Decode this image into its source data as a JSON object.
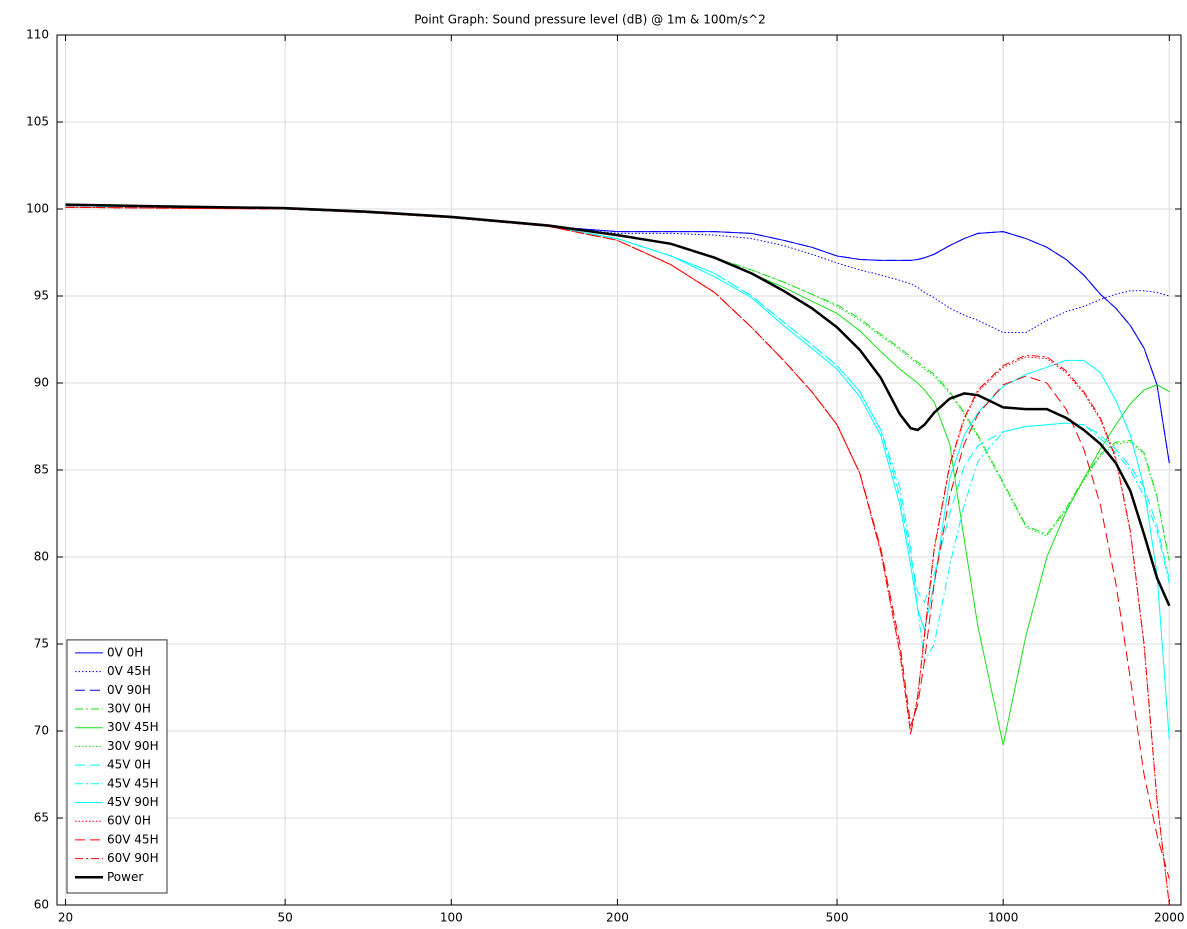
{
  "chart_data": {
    "type": "line",
    "title": "Point Graph: Sound pressure level (dB) @ 1m & 100m/s^2",
    "x": [
      20,
      30,
      50,
      70,
      100,
      150,
      200,
      250,
      300,
      350,
      400,
      450,
      500,
      550,
      600,
      650,
      680,
      700,
      720,
      750,
      800,
      850,
      900,
      1000,
      1100,
      1200,
      1300,
      1400,
      1500,
      1600,
      1700,
      1800,
      1900,
      2000
    ],
    "series": [
      {
        "name": "0V 0H",
        "color": "#0000ff",
        "style": "solid",
        "linewidth": 1,
        "values": [
          100.2,
          100.1,
          100.0,
          99.8,
          99.5,
          99.0,
          98.7,
          98.7,
          98.7,
          98.6,
          98.2,
          97.8,
          97.3,
          97.1,
          97.05,
          97.05,
          97.05,
          97.1,
          97.2,
          97.4,
          97.9,
          98.3,
          98.6,
          98.7,
          98.3,
          97.8,
          97.1,
          96.2,
          95.1,
          94.3,
          93.3,
          92.0,
          89.9,
          85.4
        ]
      },
      {
        "name": "0V 45H",
        "color": "#0000ff",
        "style": "dotted",
        "linewidth": 1,
        "values": [
          100.2,
          100.1,
          100.0,
          99.8,
          99.5,
          99.0,
          98.6,
          98.6,
          98.5,
          98.3,
          97.9,
          97.4,
          96.9,
          96.5,
          96.2,
          95.9,
          95.7,
          95.5,
          95.2,
          94.9,
          94.3,
          93.9,
          93.6,
          92.9,
          92.9,
          93.6,
          94.1,
          94.4,
          94.8,
          95.1,
          95.3,
          95.3,
          95.2,
          95.0
        ]
      },
      {
        "name": "0V 90H",
        "color": "#0000ff",
        "style": "dashed",
        "linewidth": 1,
        "values": [
          100.2,
          100.1,
          100.0,
          99.8,
          99.5,
          99.0,
          98.7,
          98.7,
          98.7,
          98.6,
          98.2,
          97.8,
          97.3,
          97.1,
          97.05,
          97.05,
          97.05,
          97.1,
          97.2,
          97.4,
          97.9,
          98.3,
          98.6,
          98.7,
          98.3,
          97.8,
          97.1,
          96.2,
          95.1,
          94.3,
          93.3,
          92.0,
          89.9,
          85.4
        ]
      },
      {
        "name": "30V 0H",
        "color": "#18e018",
        "style": "dashdot",
        "linewidth": 1,
        "values": [
          100.2,
          100.1,
          100.0,
          99.8,
          99.5,
          99.0,
          98.5,
          98.0,
          97.2,
          96.5,
          95.8,
          95.1,
          94.5,
          93.7,
          92.8,
          92.0,
          91.5,
          91.2,
          90.9,
          90.5,
          89.5,
          88.3,
          87.0,
          84.3,
          81.8,
          81.3,
          82.8,
          84.5,
          85.9,
          86.6,
          86.7,
          86.0,
          83.5,
          79.8
        ]
      },
      {
        "name": "30V 45H",
        "color": "#18e018",
        "style": "solid",
        "linewidth": 1,
        "values": [
          100.2,
          100.1,
          100.0,
          99.8,
          99.5,
          99.0,
          98.5,
          98.0,
          97.2,
          96.3,
          95.5,
          94.7,
          94.0,
          93.0,
          91.8,
          90.8,
          90.3,
          90.0,
          89.6,
          88.9,
          86.5,
          81.0,
          76.0,
          69.2,
          75.5,
          80.0,
          82.6,
          84.5,
          86.2,
          87.6,
          88.8,
          89.6,
          89.9,
          89.5
        ]
      },
      {
        "name": "30V 90H",
        "color": "#18e018",
        "style": "dotted",
        "linewidth": 1,
        "values": [
          100.2,
          100.1,
          100.0,
          99.8,
          99.5,
          99.0,
          98.5,
          98.0,
          97.2,
          96.5,
          95.8,
          95.1,
          94.4,
          93.6,
          92.7,
          91.9,
          91.4,
          91.1,
          90.8,
          90.4,
          89.4,
          88.2,
          86.9,
          84.2,
          81.7,
          81.2,
          82.7,
          84.4,
          85.8,
          86.5,
          86.6,
          85.9,
          83.4,
          79.7
        ]
      },
      {
        "name": "45V 0H",
        "color": "#00ffff",
        "style": "dashed",
        "linewidth": 1,
        "values": [
          100.2,
          100.1,
          100.0,
          99.8,
          99.5,
          99.0,
          98.3,
          97.3,
          96.3,
          95.0,
          93.5,
          92.2,
          91.0,
          89.5,
          87.3,
          83.5,
          80.0,
          78.0,
          77.4,
          79.0,
          82.5,
          85.2,
          86.4,
          87.2,
          87.5,
          87.6,
          87.7,
          87.6,
          87.0,
          86.2,
          85.2,
          84.0,
          81.8,
          78.7
        ]
      },
      {
        "name": "45V 45H",
        "color": "#00ffff",
        "style": "dashdot",
        "linewidth": 1,
        "values": [
          100.2,
          100.1,
          100.0,
          99.8,
          99.5,
          99.0,
          98.3,
          97.3,
          96.3,
          95.0,
          93.5,
          92.2,
          91.0,
          89.5,
          87.3,
          84.0,
          80.5,
          77.0,
          74.0,
          75.0,
          79.5,
          83.0,
          85.5,
          87.2,
          87.5,
          87.6,
          87.7,
          87.6,
          86.8,
          86.0,
          85.0,
          83.5,
          81.5,
          78.5
        ]
      },
      {
        "name": "45V 90H",
        "color": "#00ffff",
        "style": "solid",
        "linewidth": 1,
        "values": [
          100.2,
          100.1,
          100.0,
          99.8,
          99.5,
          99.0,
          98.3,
          97.3,
          96.1,
          94.9,
          93.3,
          92.0,
          90.8,
          89.2,
          87.0,
          83.0,
          79.5,
          77.0,
          75.8,
          78.5,
          84.5,
          87.0,
          88.3,
          89.8,
          90.5,
          90.9,
          91.3,
          91.3,
          90.6,
          89.0,
          87.0,
          84.0,
          79.0,
          69.5
        ]
      },
      {
        "name": "60V 0H",
        "color": "#ff0000",
        "style": "dotted",
        "linewidth": 1,
        "values": [
          100.1,
          100.05,
          100.0,
          99.8,
          99.5,
          99.0,
          98.2,
          96.8,
          95.2,
          93.2,
          91.3,
          89.5,
          87.6,
          84.8,
          80.3,
          74.5,
          69.9,
          72.0,
          75.4,
          80.4,
          85.2,
          87.9,
          89.5,
          90.9,
          91.5,
          91.4,
          90.6,
          89.4,
          87.9,
          85.6,
          81.4,
          74.9,
          66.0,
          60.0
        ]
      },
      {
        "name": "60V 45H",
        "color": "#ff0000",
        "style": "dashed",
        "linewidth": 1,
        "values": [
          100.1,
          100.05,
          100.0,
          99.8,
          99.5,
          99.0,
          98.2,
          96.8,
          95.2,
          93.2,
          91.3,
          89.5,
          87.6,
          84.8,
          80.5,
          75.0,
          70.3,
          71.5,
          74.0,
          78.5,
          83.5,
          86.5,
          88.2,
          89.9,
          90.4,
          90.0,
          88.5,
          86.2,
          83.0,
          78.5,
          73.0,
          67.5,
          64.0,
          61.5
        ]
      },
      {
        "name": "60V 90H",
        "color": "#ff0000",
        "style": "dashdot",
        "linewidth": 1,
        "values": [
          100.1,
          100.05,
          100.0,
          99.8,
          99.5,
          99.0,
          98.2,
          96.8,
          95.2,
          93.2,
          91.3,
          89.5,
          87.6,
          84.8,
          80.3,
          74.5,
          69.8,
          72.0,
          75.5,
          80.5,
          85.3,
          88.0,
          89.6,
          91.0,
          91.6,
          91.5,
          90.7,
          89.5,
          88.0,
          85.7,
          81.5,
          75.0,
          66.0,
          60.0
        ]
      },
      {
        "name": "Power",
        "color": "#000000",
        "style": "solid",
        "linewidth": 2.5,
        "values": [
          100.25,
          100.15,
          100.05,
          99.85,
          99.55,
          99.05,
          98.5,
          98.0,
          97.2,
          96.3,
          95.3,
          94.3,
          93.2,
          91.9,
          90.3,
          88.2,
          87.4,
          87.3,
          87.6,
          88.3,
          89.1,
          89.4,
          89.3,
          88.6,
          88.5,
          88.5,
          88.0,
          87.3,
          86.5,
          85.4,
          83.8,
          81.3,
          78.8,
          77.2
        ]
      }
    ],
    "xlim": [
      19.3,
      2100
    ],
    "ylim": [
      60,
      110
    ],
    "xlog": true,
    "xticks": [
      20,
      50,
      100,
      200,
      500,
      1000,
      2000
    ],
    "yticks": [
      60,
      65,
      70,
      75,
      80,
      85,
      90,
      95,
      100,
      105,
      110
    ],
    "grid": true,
    "legend": "lower left"
  }
}
